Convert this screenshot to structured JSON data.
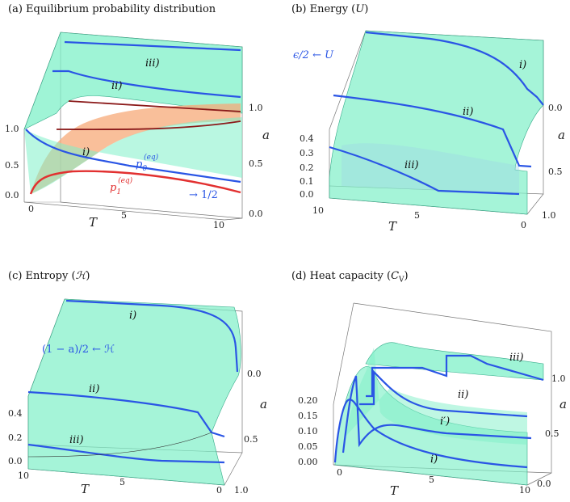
{
  "chart_data": [
    {
      "type": "surface3d",
      "panel": "a",
      "title": "(a) Equilibrium probability distribution",
      "xlabel": "T",
      "ylabel": "a",
      "x_ticks": [
        "0",
        "5",
        "10"
      ],
      "y_ticks": [
        "0.0",
        "0.5",
        "1.0"
      ],
      "z_ticks": [
        "0.0",
        "0.5",
        "1.0"
      ],
      "curve_labels": [
        "i)",
        "ii)",
        "iii)"
      ],
      "annotations": {
        "p0": "p",
        "p0_sub": "0",
        "p0_sup": "(eq)",
        "p1": "p",
        "p1_sub": "1",
        "p1_sup": "(eq)",
        "limit": "→ 1/2"
      }
    },
    {
      "type": "surface3d",
      "panel": "b",
      "title": "(b) Energy (",
      "title_symbol": "U",
      "title_end": ")",
      "xlabel": "T",
      "ylabel": "a",
      "x_ticks": [
        "10",
        "5",
        "0"
      ],
      "y_ticks": [
        "0.0",
        "0.5",
        "1.0"
      ],
      "z_ticks": [
        "0.0",
        "0.1",
        "0.2",
        "0.3",
        "0.4"
      ],
      "curve_labels": [
        "i)",
        "ii)",
        "iii)"
      ],
      "annotations": {
        "limit": "ϵ/2 ← U"
      }
    },
    {
      "type": "surface3d",
      "panel": "c",
      "title": "(c) Entropy (",
      "title_symbol": "ℋ",
      "title_end": ")",
      "xlabel": "T",
      "ylabel": "a",
      "x_ticks": [
        "10",
        "5",
        "0"
      ],
      "y_ticks": [
        "0.0",
        "0.5",
        "1.0"
      ],
      "z_ticks": [
        "0.0",
        "0.2",
        "0.4"
      ],
      "curve_labels": [
        "i)",
        "ii)",
        "iii)"
      ],
      "annotations": {
        "limit": "(1 − a)/2 ← ℋ"
      }
    },
    {
      "type": "surface3d",
      "panel": "d",
      "title": "(d) Heat capacity (",
      "title_symbol": "C",
      "title_sub": "V",
      "title_end": ")",
      "xlabel": "T",
      "ylabel": "a",
      "x_ticks": [
        "0",
        "5",
        "10"
      ],
      "y_ticks": [
        "0.0",
        "0.5",
        "1.0"
      ],
      "z_ticks": [
        "0.00",
        "0.05",
        "0.10",
        "0.15",
        "0.20"
      ],
      "curve_labels": [
        "i)",
        "i′)",
        "ii)",
        "iii)"
      ]
    }
  ]
}
